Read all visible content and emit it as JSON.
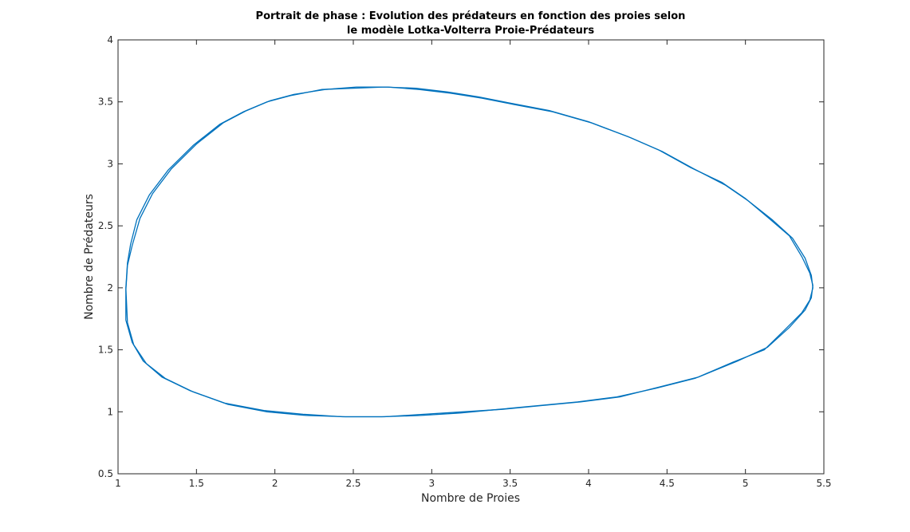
{
  "chart_data": {
    "type": "line",
    "title": [
      "Portrait de phase : Evolution des prédateurs en fonction des proies selon",
      "le modèle Lotka-Volterra Proie-Prédateurs"
    ],
    "xlabel": "Nombre de Proies",
    "ylabel": "Nombre de Prédateurs",
    "xlim": [
      1,
      5.5
    ],
    "ylim": [
      0.5,
      4
    ],
    "xticks": [
      1,
      1.5,
      2,
      2.5,
      3,
      3.5,
      4,
      4.5,
      5,
      5.5
    ],
    "yticks": [
      0.5,
      1,
      1.5,
      2,
      2.5,
      3,
      3.5,
      4
    ],
    "xtick_labels": [
      "1",
      "1.5",
      "2",
      "2.5",
      "3",
      "3.5",
      "4",
      "4.5",
      "5",
      "5.5"
    ],
    "ytick_labels": [
      "0.5",
      "1",
      "1.5",
      "2",
      "2.5",
      "3",
      "3.5",
      "4"
    ],
    "grid": false,
    "color": "#0072bd",
    "series": [
      {
        "x": [
          1.05,
          1.06,
          1.08,
          1.12,
          1.2,
          1.32,
          1.48,
          1.65,
          1.8,
          1.95,
          2.1,
          2.3,
          2.5,
          2.7,
          2.9,
          3.1,
          3.3,
          3.5,
          3.75,
          4.0,
          4.25,
          4.45,
          4.65,
          4.85,
          5.0,
          5.15,
          5.28,
          5.36,
          5.41,
          5.43,
          5.42,
          5.38,
          5.28,
          5.14,
          4.95,
          4.7,
          4.45,
          4.2,
          3.95,
          3.7,
          3.45,
          3.2,
          2.95,
          2.7,
          2.45,
          2.2,
          1.95,
          1.7,
          1.48,
          1.3,
          1.18,
          1.1,
          1.06,
          1.05
        ],
        "y": [
          2.0,
          2.2,
          2.35,
          2.55,
          2.75,
          2.95,
          3.15,
          3.32,
          3.42,
          3.5,
          3.55,
          3.6,
          3.61,
          3.62,
          3.61,
          3.58,
          3.54,
          3.49,
          3.43,
          3.34,
          3.22,
          3.11,
          2.97,
          2.85,
          2.72,
          2.56,
          2.42,
          2.25,
          2.12,
          2.02,
          1.92,
          1.82,
          1.68,
          1.52,
          1.41,
          1.28,
          1.2,
          1.12,
          1.08,
          1.05,
          1.02,
          1.0,
          0.98,
          0.96,
          0.96,
          0.97,
          1.0,
          1.06,
          1.16,
          1.27,
          1.39,
          1.54,
          1.72,
          2.0
        ]
      },
      {
        "x": [
          1.05,
          1.06,
          1.09,
          1.14,
          1.22,
          1.34,
          1.5,
          1.67,
          1.82,
          1.97,
          2.12,
          2.32,
          2.52,
          2.72,
          2.92,
          3.12,
          3.32,
          3.52,
          3.77,
          4.02,
          4.27,
          4.47,
          4.67,
          4.87,
          5.02,
          5.17,
          5.3,
          5.38,
          5.42,
          5.43,
          5.41,
          5.36,
          5.25,
          5.12,
          4.92,
          4.68,
          4.43,
          4.18,
          3.93,
          3.68,
          3.43,
          3.18,
          2.93,
          2.68,
          2.43,
          2.18,
          1.93,
          1.68,
          1.46,
          1.28,
          1.16,
          1.09,
          1.05,
          1.05
        ],
        "y": [
          1.98,
          2.18,
          2.34,
          2.56,
          2.76,
          2.96,
          3.16,
          3.33,
          3.43,
          3.51,
          3.56,
          3.6,
          3.62,
          3.62,
          3.6,
          3.57,
          3.53,
          3.48,
          3.42,
          3.33,
          3.21,
          3.1,
          2.96,
          2.83,
          2.7,
          2.55,
          2.4,
          2.24,
          2.1,
          2.0,
          1.9,
          1.8,
          1.66,
          1.5,
          1.4,
          1.27,
          1.19,
          1.12,
          1.08,
          1.05,
          1.02,
          0.99,
          0.97,
          0.96,
          0.96,
          0.98,
          1.01,
          1.07,
          1.17,
          1.28,
          1.41,
          1.56,
          1.74,
          1.98
        ]
      }
    ]
  }
}
